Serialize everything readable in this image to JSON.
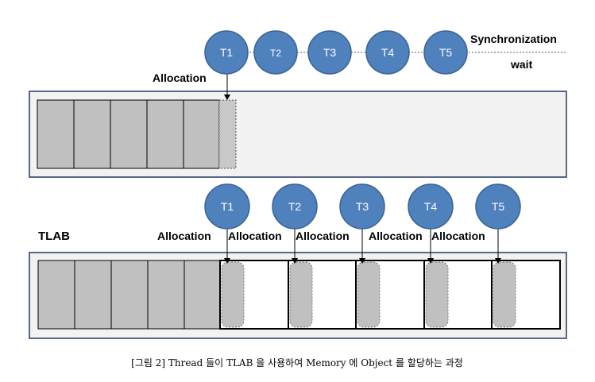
{
  "top_section": {
    "threads": [
      "T1",
      "T2",
      "T3",
      "T4",
      "T5"
    ],
    "sync_label": "Synchronization",
    "wait_label": "wait",
    "allocation_label": "Allocation"
  },
  "bottom_section": {
    "tlab_label": "TLAB",
    "threads": [
      "T1",
      "T2",
      "T3",
      "T4",
      "T5"
    ],
    "allocation_labels": [
      "Allocation",
      "Allocation",
      "Allocation",
      "Allocation",
      "Allocation"
    ]
  },
  "caption": "[그림 2] Thread 들이 TLAB 을 사용하여 Memory 에 Object 를 할당하는 과정",
  "colors": {
    "thread_fill": "#4f81bd",
    "thread_stroke": "#3a6395",
    "block_fill": "#c0c0c0",
    "memory_bg": "#f2f2f2"
  }
}
